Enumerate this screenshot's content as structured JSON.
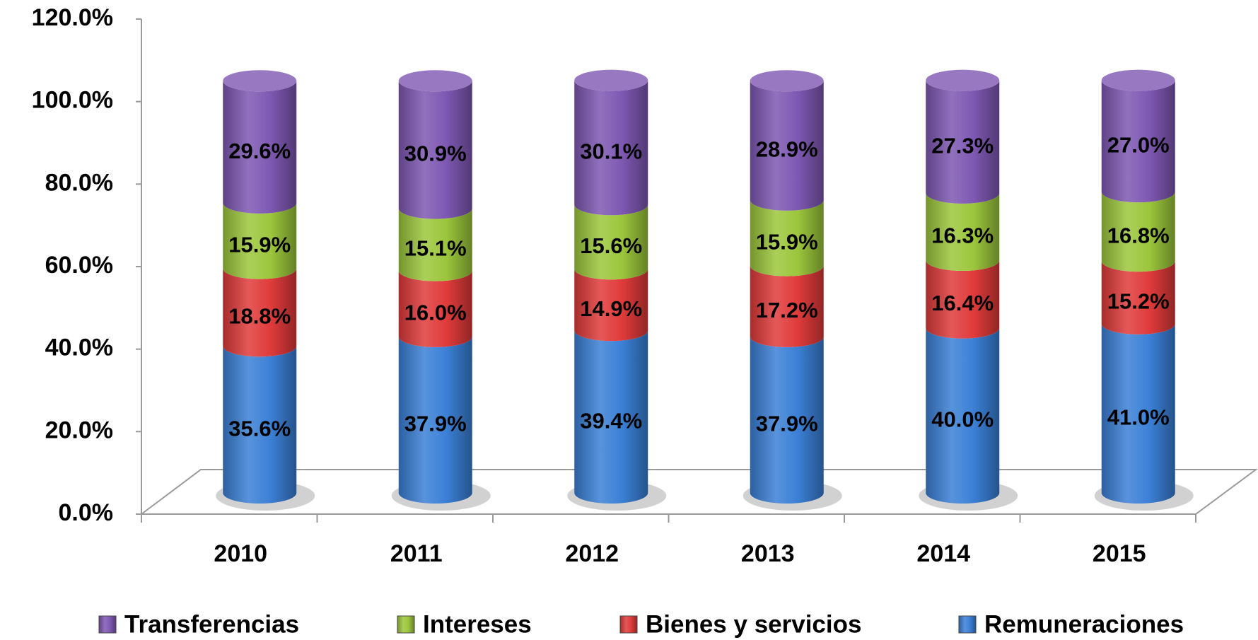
{
  "chart_data": {
    "type": "bar",
    "stacked": true,
    "categories": [
      "2010",
      "2011",
      "2012",
      "2013",
      "2014",
      "2015"
    ],
    "series": [
      {
        "name": "Remuneraciones",
        "color": "#3b80d6",
        "values": [
          35.6,
          37.9,
          39.4,
          37.9,
          40.0,
          41.0
        ],
        "value_labels": [
          "35.6%",
          "37.9%",
          "39.4%",
          "37.9%",
          "40.0%",
          "41.0%"
        ]
      },
      {
        "name": "Bienes y servicios",
        "color": "#e03b3b",
        "values": [
          18.8,
          16.0,
          14.9,
          17.2,
          16.4,
          15.2
        ],
        "value_labels": [
          "18.8%",
          "16.0%",
          "14.9%",
          "17.2%",
          "16.4%",
          "15.2%"
        ]
      },
      {
        "name": "Intereses",
        "color": "#9cc63c",
        "values": [
          15.9,
          15.1,
          15.6,
          15.9,
          16.3,
          16.8
        ],
        "value_labels": [
          "15.9%",
          "15.1%",
          "15.6%",
          "15.9%",
          "16.3%",
          "16.8%"
        ]
      },
      {
        "name": "Transferencias",
        "color": "#7e58b2",
        "values": [
          29.6,
          30.9,
          30.1,
          28.9,
          27.3,
          27.0
        ],
        "value_labels": [
          "29.6%",
          "30.9%",
          "30.1%",
          "28.9%",
          "27.3%",
          "27.0%"
        ]
      }
    ],
    "ylim": [
      0,
      120
    ],
    "yticks": [
      {
        "value": 0,
        "label": "0.0%"
      },
      {
        "value": 20,
        "label": "20.0%"
      },
      {
        "value": 40,
        "label": "40.0%"
      },
      {
        "value": 60,
        "label": "60.0%"
      },
      {
        "value": 80,
        "label": "80.0%"
      },
      {
        "value": 100,
        "label": "100.0%"
      },
      {
        "value": 120,
        "label": "120.0%"
      }
    ],
    "grid": false,
    "legend": "bottom"
  }
}
